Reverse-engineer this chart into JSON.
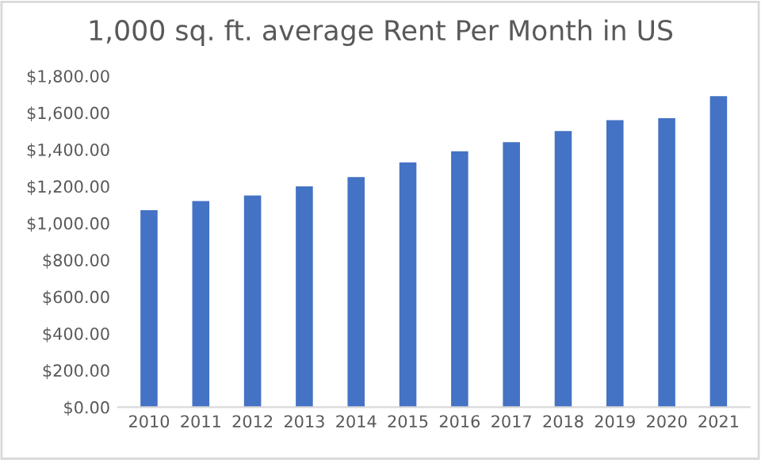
{
  "chart_data": {
    "type": "bar",
    "title": "1,000 sq. ft. average Rent Per Month in US",
    "categories": [
      "2010",
      "2011",
      "2012",
      "2013",
      "2014",
      "2015",
      "2016",
      "2017",
      "2018",
      "2019",
      "2020",
      "2021"
    ],
    "values": [
      1070,
      1120,
      1150,
      1200,
      1250,
      1330,
      1390,
      1440,
      1500,
      1560,
      1570,
      1690
    ],
    "color": "#4472c4",
    "ylim": [
      0,
      1800
    ],
    "yticks": [
      {
        "value": 0,
        "label": "$0.00"
      },
      {
        "value": 200,
        "label": "$200.00"
      },
      {
        "value": 400,
        "label": "$400.00"
      },
      {
        "value": 600,
        "label": "$600.00"
      },
      {
        "value": 800,
        "label": "$800.00"
      },
      {
        "value": 1000,
        "label": "$1,000.00"
      },
      {
        "value": 1200,
        "label": "$1,200.00"
      },
      {
        "value": 1400,
        "label": "$1,400.00"
      },
      {
        "value": 1600,
        "label": "$1,600.00"
      },
      {
        "value": 1800,
        "label": "$1,800.00"
      }
    ],
    "grid": false
  }
}
